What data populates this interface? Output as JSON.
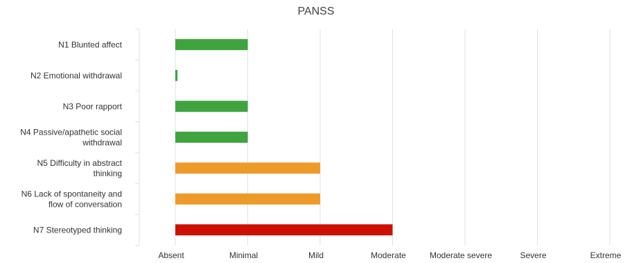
{
  "chart_data": {
    "type": "bar",
    "orientation": "horizontal",
    "title": "PANSS",
    "categories": [
      "N1 Blunted affect",
      "N2 Emotional withdrawal",
      "N3 Poor rapport",
      "N4 Passive/apathetic social withdrawal",
      "N5 Difficulty in abstract thinking",
      "N6 Lack of spontaneity and flow of conversation",
      "N7 Stereotyped thinking"
    ],
    "category_label_lines": [
      [
        "N1 Blunted affect"
      ],
      [
        "N2 Emotional withdrawal"
      ],
      [
        "N3 Poor rapport"
      ],
      [
        "N4 Passive/apathetic social",
        "withdrawal"
      ],
      [
        "N5 Difficulty in abstract",
        "thinking"
      ],
      [
        "N6 Lack of spontaneity and",
        "flow of conversation"
      ],
      [
        "N7 Stereotyped thinking"
      ]
    ],
    "values": [
      1,
      0.03,
      1,
      1,
      2,
      2,
      3
    ],
    "bar_colors": [
      "#3FA33F",
      "#3FA33F",
      "#3FA33F",
      "#3FA33F",
      "#EE9A2A",
      "#EE9A2A",
      "#CC1100"
    ],
    "x_tick_labels": [
      "Absent",
      "Minimal",
      "Mild",
      "Moderate",
      "Moderate severe",
      "Severe",
      "Extreme"
    ],
    "xlim": [
      0,
      6
    ],
    "grid": true,
    "legend": "none"
  }
}
